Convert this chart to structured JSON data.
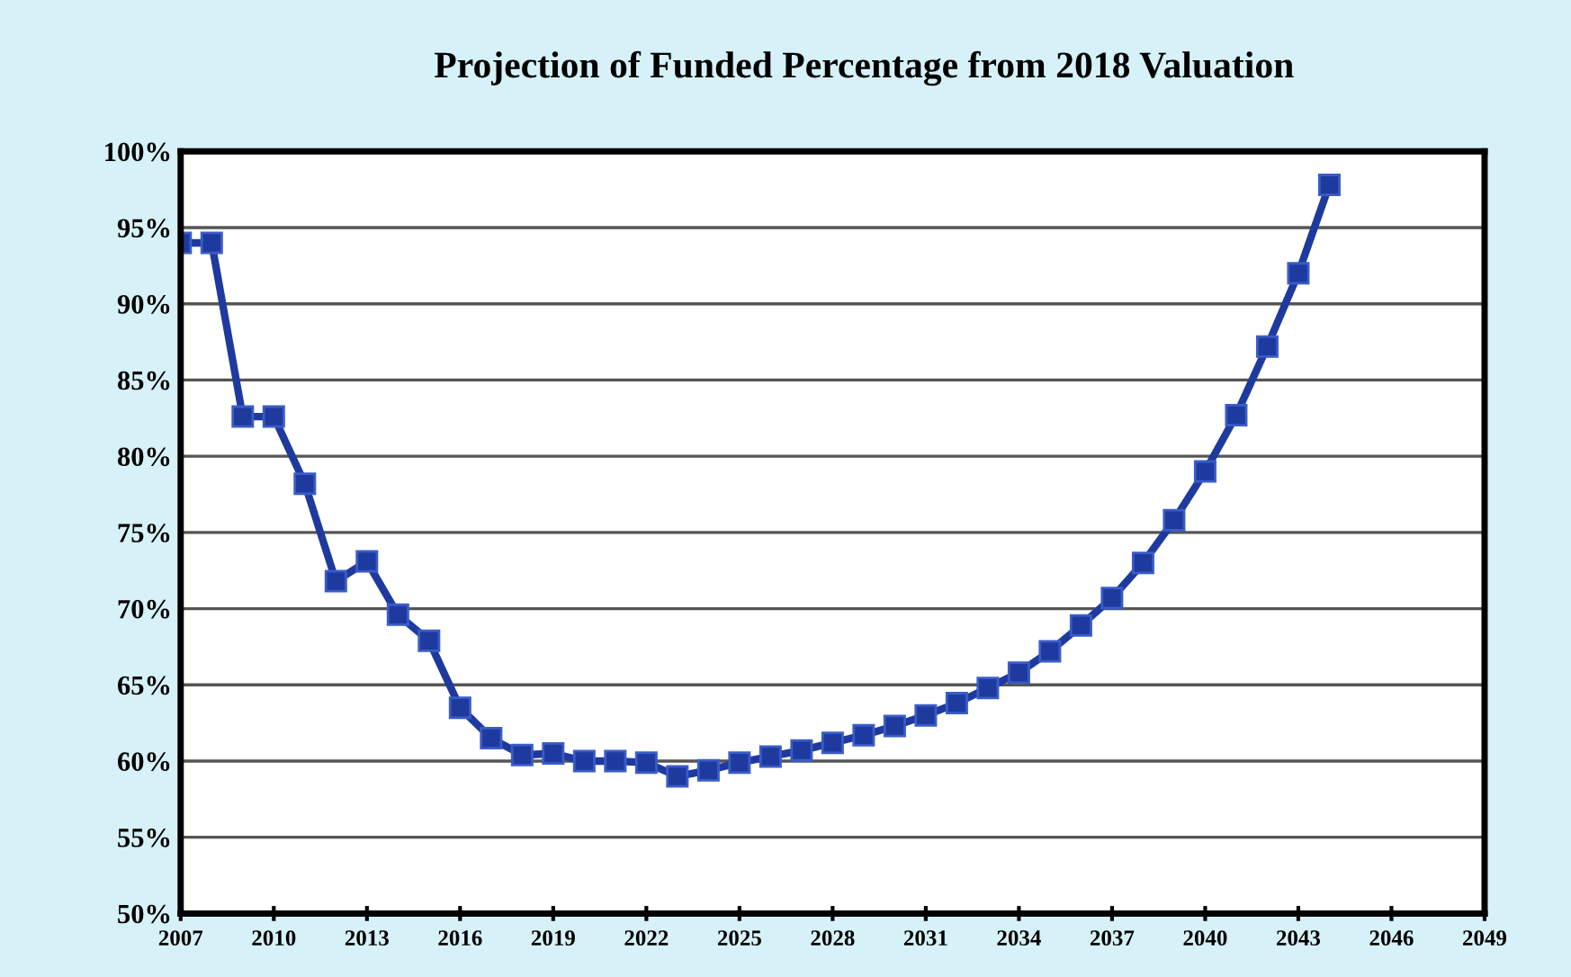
{
  "chart_data": {
    "type": "line",
    "title": "Projection of Funded Percentage from 2018 Valuation",
    "x": [
      2007,
      2008,
      2009,
      2010,
      2011,
      2012,
      2013,
      2014,
      2015,
      2016,
      2017,
      2018,
      2019,
      2020,
      2021,
      2022,
      2023,
      2024,
      2025,
      2026,
      2027,
      2028,
      2029,
      2030,
      2031,
      2032,
      2033,
      2034,
      2035,
      2036,
      2037,
      2038,
      2039,
      2040,
      2041,
      2042,
      2043,
      2044
    ],
    "series": [
      {
        "color": "#1f3a9e",
        "values": [
          94,
          94,
          82.6,
          82.6,
          78.2,
          71.8,
          73.1,
          69.6,
          67.9,
          63.5,
          61.5,
          60.4,
          60.5,
          60.0,
          60.0,
          59.9,
          59.0,
          59.4,
          59.9,
          60.3,
          60.7,
          61.2,
          61.7,
          62.3,
          63.0,
          63.8,
          64.8,
          65.8,
          67.2,
          68.9,
          70.7,
          73.0,
          75.8,
          79.0,
          82.7,
          87.2,
          92.0,
          97.8
        ]
      }
    ],
    "xlim": [
      2007,
      2049
    ],
    "xticks": [
      2007,
      2010,
      2013,
      2016,
      2019,
      2022,
      2025,
      2028,
      2031,
      2034,
      2037,
      2040,
      2043,
      2046,
      2049
    ],
    "ylim": [
      50,
      100
    ],
    "yticks": [
      {
        "value": 50,
        "label": "50%"
      },
      {
        "value": 55,
        "label": "55%"
      },
      {
        "value": 60,
        "label": "60%"
      },
      {
        "value": 65,
        "label": "65%"
      },
      {
        "value": 70,
        "label": "70%"
      },
      {
        "value": 75,
        "label": "75%"
      },
      {
        "value": 80,
        "label": "80%"
      },
      {
        "value": 85,
        "label": "85%"
      },
      {
        "value": 90,
        "label": "90%"
      },
      {
        "value": 95,
        "label": "95%"
      },
      {
        "value": 100,
        "label": "100%"
      }
    ],
    "grid": "y",
    "marker": "square",
    "line_style": "solid",
    "legend": false
  }
}
